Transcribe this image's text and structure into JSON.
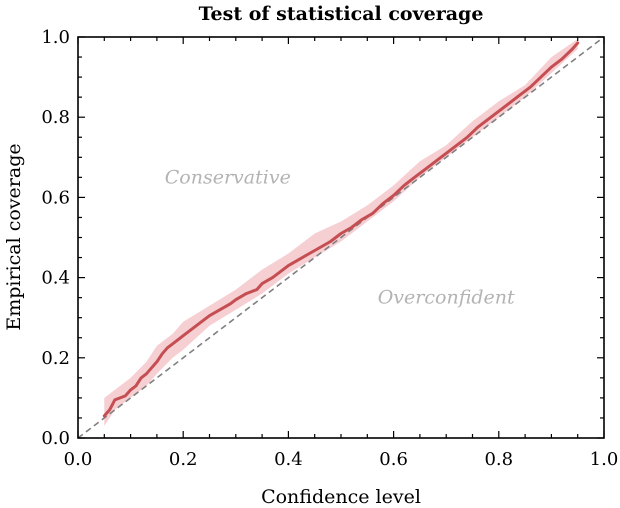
{
  "chart_data": {
    "type": "line",
    "title": "Test of statistical coverage",
    "xlabel": "Confidence level",
    "ylabel": "Empirical coverage",
    "xlim": [
      0.0,
      1.0
    ],
    "ylim": [
      0.0,
      1.0
    ],
    "xticks": [
      "0.0",
      "0.2",
      "0.4",
      "0.6",
      "0.8",
      "1.0"
    ],
    "yticks": [
      "0.0",
      "0.2",
      "0.4",
      "0.6",
      "0.8",
      "1.0"
    ],
    "xtick_values": [
      0.0,
      0.2,
      0.4,
      0.6,
      0.8,
      1.0
    ],
    "ytick_values": [
      0.0,
      0.2,
      0.4,
      0.6,
      0.8,
      1.0
    ],
    "grid": false,
    "ticks_direction": "in",
    "ticks_on_all_sides": true,
    "series": [
      {
        "name": "Empirical coverage",
        "color": "#c44e52",
        "x": [
          0.05,
          0.06,
          0.07,
          0.08,
          0.09,
          0.1,
          0.11,
          0.12,
          0.13,
          0.14,
          0.15,
          0.16,
          0.17,
          0.18,
          0.19,
          0.2,
          0.22,
          0.24,
          0.25,
          0.27,
          0.29,
          0.3,
          0.32,
          0.34,
          0.35,
          0.37,
          0.38,
          0.4,
          0.42,
          0.44,
          0.46,
          0.48,
          0.5,
          0.52,
          0.54,
          0.56,
          0.58,
          0.6,
          0.62,
          0.64,
          0.66,
          0.68,
          0.7,
          0.72,
          0.74,
          0.76,
          0.78,
          0.8,
          0.82,
          0.84,
          0.86,
          0.88,
          0.9,
          0.92,
          0.94,
          0.95
        ],
        "y": [
          0.055,
          0.07,
          0.095,
          0.1,
          0.105,
          0.12,
          0.13,
          0.15,
          0.16,
          0.175,
          0.19,
          0.21,
          0.225,
          0.235,
          0.245,
          0.255,
          0.275,
          0.295,
          0.305,
          0.32,
          0.335,
          0.345,
          0.36,
          0.37,
          0.385,
          0.4,
          0.41,
          0.43,
          0.445,
          0.46,
          0.475,
          0.49,
          0.51,
          0.525,
          0.545,
          0.56,
          0.585,
          0.605,
          0.63,
          0.65,
          0.67,
          0.69,
          0.71,
          0.73,
          0.75,
          0.775,
          0.795,
          0.815,
          0.835,
          0.855,
          0.875,
          0.9,
          0.925,
          0.945,
          0.97,
          0.985
        ]
      },
      {
        "name": "Ideal calibration",
        "color": "#808080",
        "style": "dashed",
        "x": [
          0.0,
          1.0
        ],
        "y": [
          0.0,
          1.0
        ]
      }
    ],
    "band": {
      "name": "Uncertainty band",
      "color": "#f4c7cb",
      "x": [
        0.05,
        0.07,
        0.1,
        0.13,
        0.15,
        0.18,
        0.2,
        0.25,
        0.3,
        0.35,
        0.4,
        0.45,
        0.5,
        0.55,
        0.6,
        0.65,
        0.7,
        0.75,
        0.8,
        0.85,
        0.9,
        0.95
      ],
      "lower": [
        0.03,
        0.07,
        0.1,
        0.13,
        0.16,
        0.2,
        0.22,
        0.28,
        0.32,
        0.36,
        0.41,
        0.45,
        0.49,
        0.54,
        0.59,
        0.65,
        0.7,
        0.75,
        0.8,
        0.85,
        0.91,
        0.97
      ],
      "upper": [
        0.1,
        0.12,
        0.15,
        0.19,
        0.23,
        0.26,
        0.29,
        0.33,
        0.37,
        0.42,
        0.46,
        0.51,
        0.54,
        0.58,
        0.63,
        0.69,
        0.73,
        0.79,
        0.84,
        0.88,
        0.95,
        0.995
      ]
    },
    "annotations": [
      {
        "text": "Conservative",
        "x": 0.3,
        "y": 0.65
      },
      {
        "text": "Overconfident",
        "x": 0.7,
        "y": 0.35
      }
    ]
  }
}
